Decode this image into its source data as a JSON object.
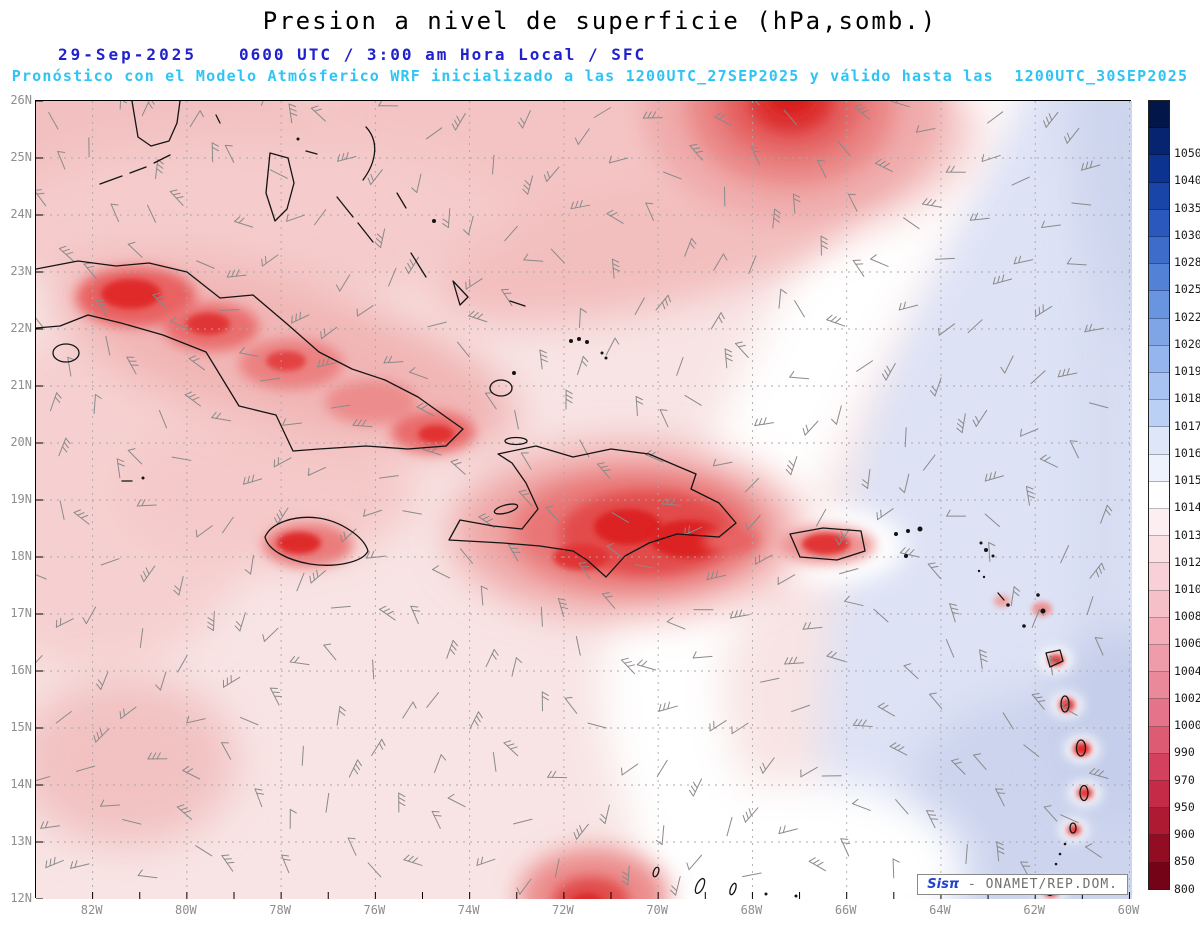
{
  "header": {
    "title": "Presion a nivel de superficie (hPa,somb.)",
    "date": "29-Sep-2025",
    "time": "0600 UTC / 3:00 am Hora Local / SFC",
    "forecast": "Pronóstico con el Modelo Atmósferico WRF inicializado a las 1200UTC_27SEP2025 y válido hasta las  1200UTC_30SEP2025"
  },
  "map": {
    "lat_labels": [
      "26N",
      "25N",
      "24N",
      "23N",
      "22N",
      "21N",
      "20N",
      "19N",
      "18N",
      "17N",
      "16N",
      "15N",
      "14N",
      "13N",
      "12N"
    ],
    "lon_labels": [
      "82W",
      "80W",
      "78W",
      "76W",
      "74W",
      "72W",
      "70W",
      "68W",
      "66W",
      "64W",
      "62W",
      "60W"
    ],
    "watermark": {
      "brand": "Sisπ",
      "suffix": " - ONAMET/REP.DOM."
    }
  },
  "colorbar": {
    "values": [
      "1050",
      "1040",
      "1035",
      "1030",
      "1028",
      "1025",
      "1022",
      "1020",
      "1019",
      "1018",
      "1017",
      "1016",
      "1015",
      "1014",
      "1013",
      "1012",
      "1010",
      "1008",
      "1006",
      "1004",
      "1002",
      "1000",
      "990",
      "970",
      "950",
      "900",
      "850",
      "800"
    ],
    "colors": [
      "#03164a",
      "#062470",
      "#0c338f",
      "#1a45a8",
      "#2b58bc",
      "#3e6ccb",
      "#5381d6",
      "#6994e0",
      "#7fa5e7",
      "#94b5ed",
      "#a8c3f1",
      "#bbd0f5",
      "#dee7fa",
      "#eef2fc",
      "#ffffff",
      "#fdeff1",
      "#fbe0e4",
      "#f9d0d6",
      "#f6c0c8",
      "#f3aeb9",
      "#ef9caa",
      "#ea899a",
      "#e57389",
      "#de5b74",
      "#d4415d",
      "#c52b46",
      "#ad1a32",
      "#920d22",
      "#740318"
    ]
  },
  "chart_data": {
    "type": "heatmap",
    "title": "Presion a nivel de superficie (hPa,somb.)",
    "units": "hPa",
    "x_tick_labels": [
      "82W",
      "80W",
      "78W",
      "76W",
      "74W",
      "72W",
      "70W",
      "68W",
      "66W",
      "64W",
      "62W",
      "60W"
    ],
    "y_tick_labels": [
      "26N",
      "25N",
      "24N",
      "23N",
      "22N",
      "21N",
      "20N",
      "19N",
      "18N",
      "17N",
      "16N",
      "15N",
      "14N",
      "13N",
      "12N"
    ],
    "colorbar_levels": [
      1050,
      1040,
      1035,
      1030,
      1028,
      1025,
      1022,
      1020,
      1019,
      1018,
      1017,
      1016,
      1015,
      1014,
      1013,
      1012,
      1010,
      1008,
      1006,
      1004,
      1002,
      1000,
      990,
      970,
      950,
      900,
      850,
      800
    ],
    "legend_position": "right colorbar",
    "grid": "dashed 1-deg latitude / 2-deg longitude",
    "overlays": [
      "gray wind barbs across whole domain",
      "black coastlines (Cuba, Hispaniola, Jamaica, Puerto Rico, Bahamas, Lesser Antilles)",
      "SisPI watermark box"
    ],
    "shading_summary": [
      {
        "region": "west and central Caribbean background (Cuba to Puerto Rico longitudes)",
        "approx_value_hpa": "1012-1013",
        "color": "light pink"
      },
      {
        "region": "island interiors: Cuba ridge, Hispaniola, Jamaica, Puerto Rico, Lesser Antilles spots, top-right cell near 71W 26N, spot near 71W 12N",
        "approx_value_hpa": "1004-1010",
        "color": "deep red"
      },
      {
        "region": "transition band curving from ~64W at 26N to ~69W at 12N",
        "approx_value_hpa": "1013-1014",
        "color": "white"
      },
      {
        "region": "eastern/Atlantic side of domain",
        "approx_value_hpa": "1015-1018",
        "color": "light blue-lavender"
      }
    ]
  }
}
